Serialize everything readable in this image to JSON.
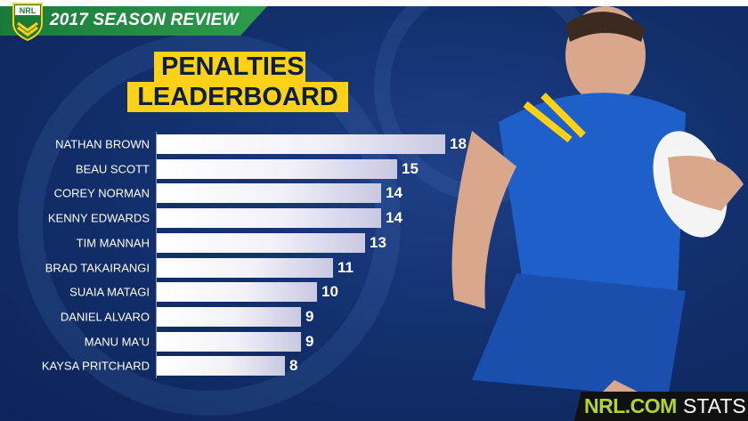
{
  "header": {
    "title": "2017 SEASON REVIEW",
    "logo_text": "NRL"
  },
  "chart_data": {
    "type": "bar",
    "orientation": "horizontal",
    "title": "PENALTIES LEADERBOARD",
    "title_lines": [
      "PENALTIES",
      "LEADERBOARD"
    ],
    "categories": [
      "NATHAN BROWN",
      "BEAU SCOTT",
      "COREY NORMAN",
      "KENNY EDWARDS",
      "TIM MANNAH",
      "BRAD TAKAIRANGI",
      "SUAIA MATAGI",
      "DANIEL ALVARO",
      "MANU MA'U",
      "KAYSA PRITCHARD"
    ],
    "values": [
      18,
      15,
      14,
      14,
      13,
      11,
      10,
      9,
      9,
      8
    ],
    "xlim": [
      0,
      18
    ],
    "grid": false,
    "colors": {
      "bar": "#ffffff",
      "title_bg": "#fcd116",
      "background": "#13306e"
    }
  },
  "footer": {
    "brand": "NRL.COM",
    "suffix": "STATS",
    "brand_color": "#b4d334"
  }
}
